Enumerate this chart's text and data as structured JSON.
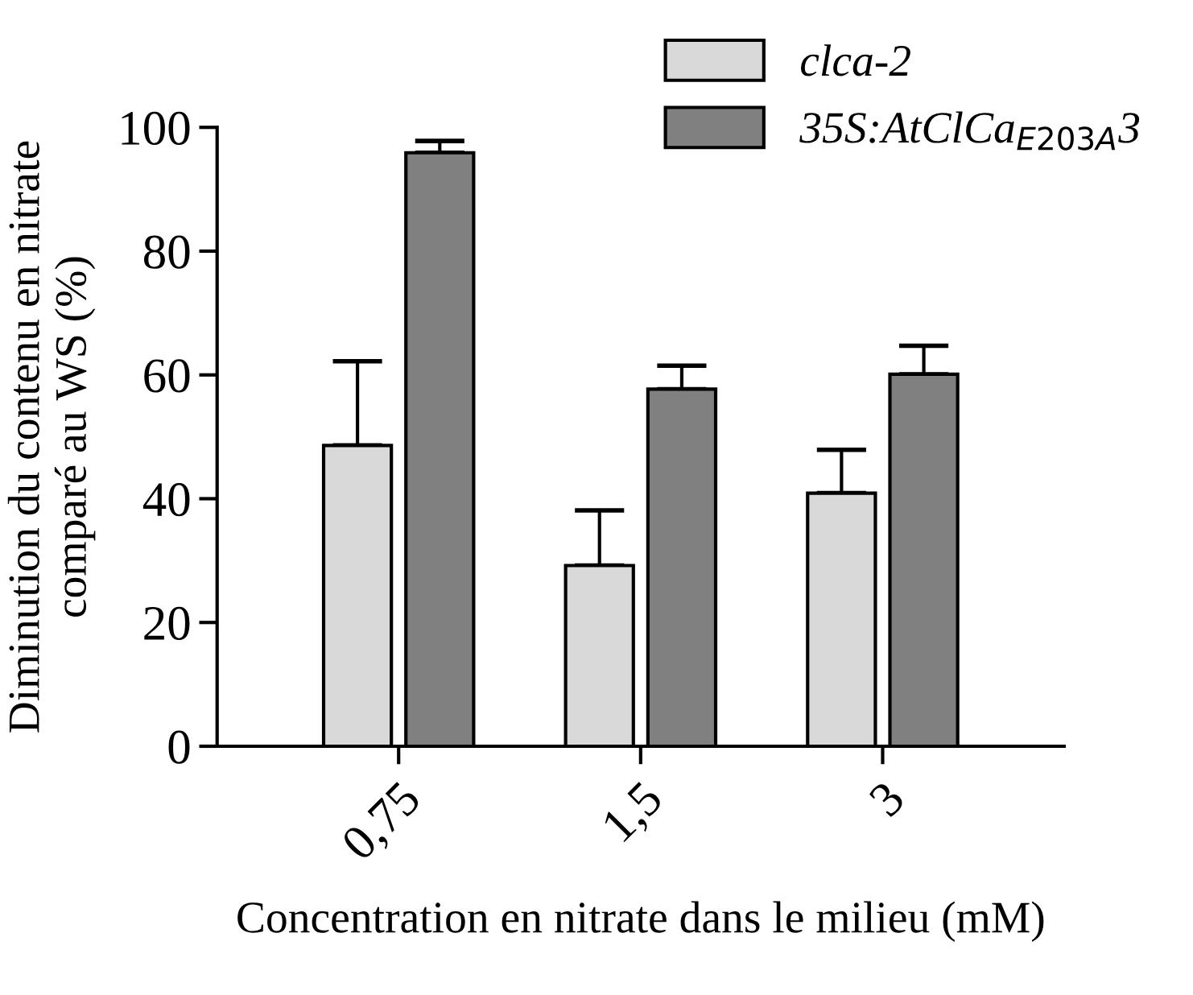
{
  "chart_data": {
    "type": "bar",
    "xlabel": "Concentration en nitrate dans le milieu (mM)",
    "ylabel": "Diminution du contenu en nitrate\ncomparé au WS (%)",
    "categories": [
      "0,75",
      "1,5",
      "3"
    ],
    "series": [
      {
        "name": "clca-2",
        "color": "#d9d9d9",
        "values": [
          48.6,
          29.2,
          40.9
        ],
        "errors": [
          [
            48.6,
            62.2
          ],
          [
            29.2,
            38.1
          ],
          [
            40.9,
            47.9
          ]
        ]
      },
      {
        "name": "35S:AtClCa$_{E203A}$3",
        "color": "#808080",
        "values": [
          95.9,
          57.7,
          60.1
        ],
        "errors": [
          [
            95.9,
            97.8
          ],
          [
            57.7,
            61.5
          ],
          [
            60.1,
            64.7
          ]
        ]
      }
    ],
    "ylim": [
      0,
      100
    ],
    "yticks": [
      0,
      20,
      40,
      60,
      80,
      100
    ],
    "grid": false,
    "legend": "top right"
  }
}
